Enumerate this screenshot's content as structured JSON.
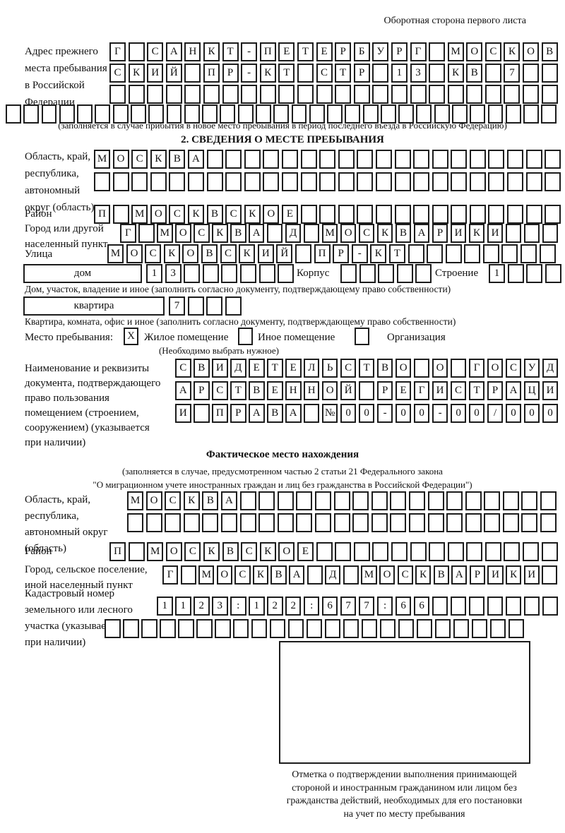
{
  "header": {
    "corner_note": "Оборотная сторона первого листа"
  },
  "prev_address": {
    "label_lines": [
      "Адрес прежнего",
      "места пребывания",
      "в Российской",
      "Федерации"
    ],
    "rows": [
      {
        "len": 24,
        "text": "Г САНКТ-ПЕТЕРБУРГ МОСКОВ"
      },
      {
        "len": 24,
        "text": "СКИЙ ПР-КТ СТР 13 КВ 7"
      },
      {
        "len": 24,
        "text": ""
      },
      {
        "len": 31,
        "text": ""
      }
    ],
    "note": "(заполняется в случае прибытия в новое место пребывания в период последнего въезда в Российскую Федерацию)"
  },
  "section2": {
    "title": "2. СВЕДЕНИЯ О МЕСТЕ ПРЕБЫВАНИЯ",
    "region": {
      "label_lines": [
        "Область, край,",
        "республика,",
        "автономный",
        "округ (область)"
      ],
      "rows": [
        {
          "len": 25,
          "text": "МОСКВА"
        },
        {
          "len": 25,
          "text": ""
        }
      ]
    },
    "district": {
      "label": "Район",
      "cells": {
        "len": 25,
        "text": "П МОСКВСКОЕ"
      }
    },
    "city": {
      "label_lines": [
        "Город или другой",
        "населенный пункт"
      ],
      "cells": {
        "len": 24,
        "text": "Г МОСКВА Д МОСКВАРИКИ"
      }
    },
    "street": {
      "label": "Улица",
      "cells": {
        "len": 24,
        "text": "МОСКОВСКИЙ ПР-КТ"
      }
    },
    "house_row": {
      "house_label": "дом",
      "house_cells": {
        "len": 8,
        "text": "13"
      },
      "korpus_label": "Корпус",
      "korpus_cells": {
        "len": 5,
        "text": ""
      },
      "stroenie_label": "Строение",
      "stroenie_cells": {
        "len": 4,
        "text": "1"
      }
    },
    "house_note": "Дом, участок, владение и иное (заполнить согласно документу, подтверждающему право собственности)",
    "apartment_row": {
      "label": "квартира",
      "cells": {
        "len": 4,
        "text": "7"
      }
    },
    "apartment_note": "Квартира, комната, офис и иное (заполнить согласно документу, подтверждающему право собственности)",
    "stay_place": {
      "label": "Место пребывания:",
      "options": [
        {
          "label": "Жилое помещение",
          "mark": "X"
        },
        {
          "label": "Иное помещение",
          "mark": ""
        },
        {
          "label": "Организация",
          "mark": ""
        }
      ],
      "note": "(Необходимо выбрать нужное)"
    },
    "document": {
      "label_lines": [
        "Наименование и реквизиты",
        "документа, подтверждающего",
        "право пользования",
        "помещением (строением,",
        "сооружением) (указывается",
        "при наличии)"
      ],
      "rows": [
        {
          "len": 21,
          "text": "СВИДЕТЕЛЬСТВО О ГОСУД"
        },
        {
          "len": 21,
          "text": "АРСТВЕННОЙ РЕГИСТРАЦИ"
        },
        {
          "len": 21,
          "text": "И ПРАВА №00-00-00/000"
        }
      ]
    }
  },
  "actual_location": {
    "title": "Фактическое место нахождения",
    "note_line1": "(заполняется в случае, предусмотренном частью 2 статьи 21 Федерального закона",
    "note_line2": "\"О миграционном учете иностранных граждан и лиц без гражданства в Российской Федерации\")",
    "region": {
      "label_lines": [
        "Область, край,",
        "республика,",
        "автономный округ",
        "(область)"
      ],
      "rows": [
        {
          "len": 23,
          "text": "МОСКВА"
        },
        {
          "len": 23,
          "text": ""
        }
      ]
    },
    "district": {
      "label": "Район",
      "cells": {
        "len": 24,
        "text": "П МОСКВСКОЕ"
      }
    },
    "city": {
      "label_lines": [
        "Город, сельское поселение,",
        "иной населенный пункт"
      ],
      "cells": {
        "len": 22,
        "text": "Г МОСКВА Д МОСКВАРИКИ"
      }
    },
    "cadastral": {
      "label_lines": [
        "Кадастровый номер",
        "земельного или лесного",
        "участка (указывается",
        "при наличии)"
      ],
      "rows": [
        {
          "len": 22,
          "text": "1123:122:677:66"
        },
        {
          "len": 23,
          "text": ""
        }
      ]
    }
  },
  "stamp": {
    "caption_lines": [
      "Отметка о подтверждении выполнения принимающей",
      "стороной и иностранным гражданином или лицом без",
      "гражданства действий, необходимых для его постановки",
      "на учет по месту пребывания"
    ]
  }
}
